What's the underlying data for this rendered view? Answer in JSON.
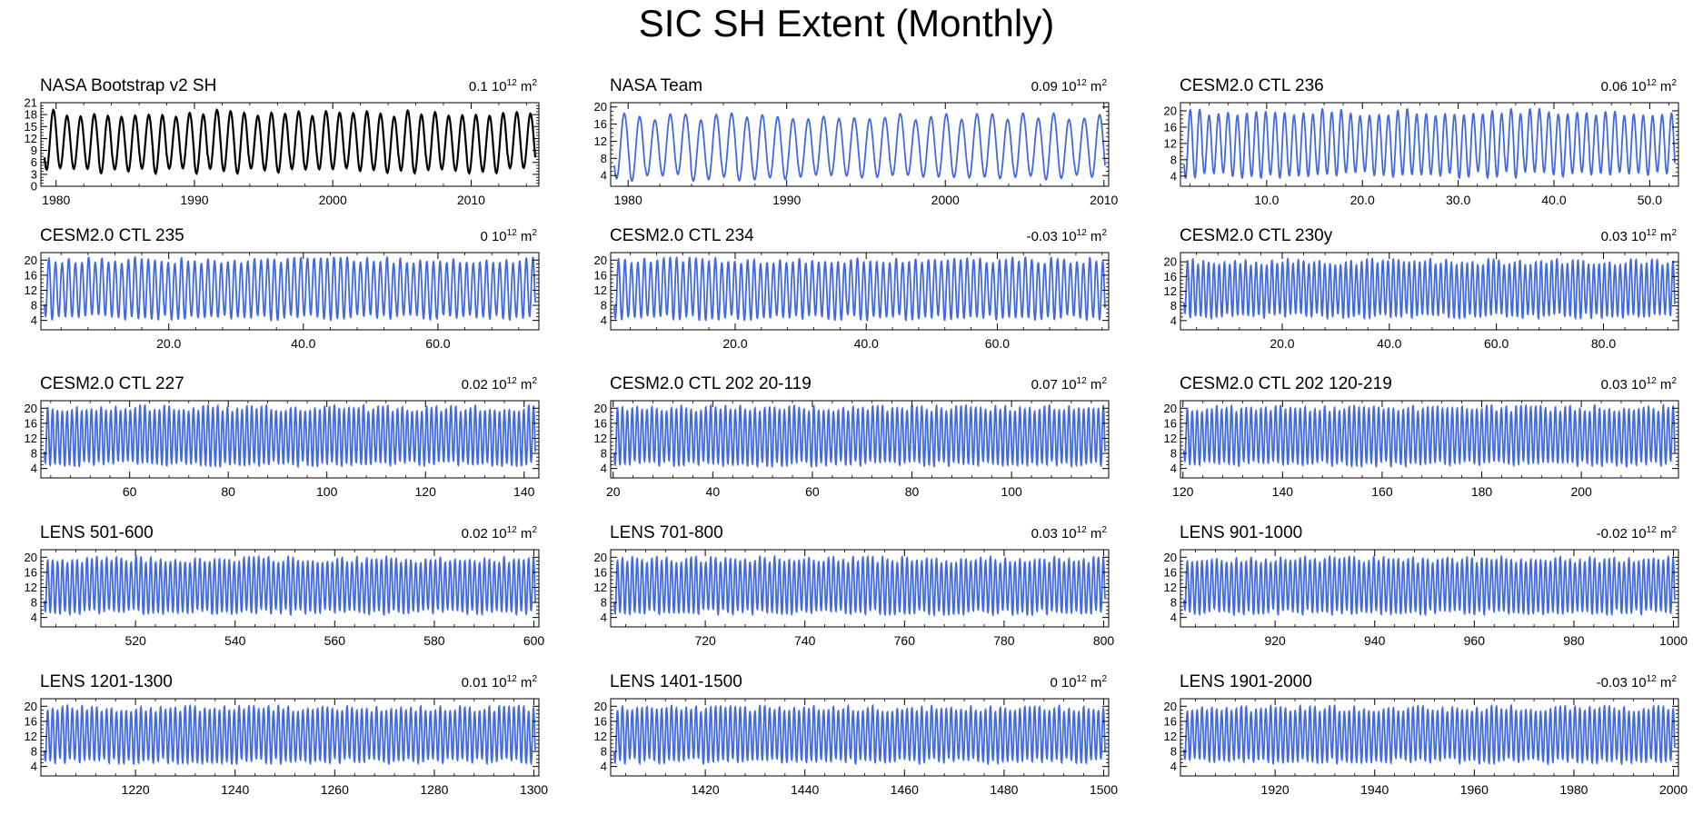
{
  "figure_title": "SIC SH Extent (Monthly)",
  "colors": {
    "observed": "#000000",
    "model": "#4169e1",
    "frame": "#000000"
  },
  "unit": {
    "base": "10",
    "exp": "12",
    "suffix": "m",
    "sup": "2"
  },
  "chart_data": [
    {
      "type": "line",
      "title": "NASA Bootstrap v2 SH",
      "trend": "0.1",
      "color": "#000000",
      "xlim": [
        1978.9,
        2014.9
      ],
      "xticks": [
        1980,
        1990,
        2000,
        2010
      ],
      "xtick_labels": [
        "1980",
        "1990",
        "2000",
        "2010"
      ],
      "ylim": [
        0,
        21
      ],
      "yticks": [
        0,
        3,
        6,
        9,
        12,
        15,
        18,
        21
      ],
      "ytick_labels": [
        "0",
        "3",
        "6",
        "9",
        "12",
        "15",
        "18",
        "21"
      ],
      "series": [
        {
          "name": "NASA Bootstrap v2 SH",
          "cycles": 36,
          "min": 3.5,
          "max": 19.2,
          "min_phase": 0.15
        }
      ]
    },
    {
      "type": "line",
      "title": "NASA Team",
      "trend": "0.09",
      "color": "#4169e1",
      "xlim": [
        1978.9,
        2010.3
      ],
      "xticks": [
        1980,
        1990,
        2000,
        2010
      ],
      "xtick_labels": [
        "1980",
        "1990",
        "2000",
        "2010"
      ],
      "ylim": [
        1.5,
        21
      ],
      "yticks": [
        4,
        8,
        12,
        16,
        20
      ],
      "ytick_labels": [
        "4",
        "8",
        "12",
        "16",
        "20"
      ],
      "series": [
        {
          "name": "NASA Team",
          "cycles": 32,
          "min": 3.2,
          "max": 18.6,
          "min_phase": 0.15
        }
      ]
    },
    {
      "type": "line",
      "title": "CESM2.0 CTL 236",
      "trend": "0.06",
      "color": "#4169e1",
      "xlim": [
        1,
        53
      ],
      "xticks": [
        10,
        20,
        30,
        40,
        50
      ],
      "xtick_labels": [
        "10.0",
        "20.0",
        "30.0",
        "40.0",
        "50.0"
      ],
      "ylim": [
        1.5,
        22
      ],
      "yticks": [
        4,
        8,
        12,
        16,
        20
      ],
      "ytick_labels": [
        "4",
        "8",
        "12",
        "16",
        "20"
      ],
      "series": [
        {
          "name": "CESM2.0 CTL 236",
          "cycles": 52,
          "min": 4.0,
          "max": 20.5,
          "min_phase": 0.15
        }
      ]
    },
    {
      "type": "line",
      "title": "CESM2.0 CTL 235",
      "trend": "0",
      "color": "#4169e1",
      "xlim": [
        1,
        75
      ],
      "xticks": [
        20,
        40,
        60
      ],
      "xtick_labels": [
        "20.0",
        "40.0",
        "60.0"
      ],
      "ylim": [
        1.5,
        22
      ],
      "yticks": [
        4,
        8,
        12,
        16,
        20
      ],
      "ytick_labels": [
        "4",
        "8",
        "12",
        "16",
        "20"
      ],
      "series": [
        {
          "name": "CESM2.0 CTL 235",
          "cycles": 74,
          "min": 4.5,
          "max": 20.8,
          "min_phase": 0.15
        }
      ]
    },
    {
      "type": "line",
      "title": "CESM2.0 CTL 234",
      "trend": "-0.03",
      "color": "#4169e1",
      "xlim": [
        1,
        77
      ],
      "xticks": [
        20,
        40,
        60
      ],
      "xtick_labels": [
        "20.0",
        "40.0",
        "60.0"
      ],
      "ylim": [
        1.5,
        22
      ],
      "yticks": [
        4,
        8,
        12,
        16,
        20
      ],
      "ytick_labels": [
        "4",
        "8",
        "12",
        "16",
        "20"
      ],
      "series": [
        {
          "name": "CESM2.0 CTL 234",
          "cycles": 76,
          "min": 4.5,
          "max": 20.8,
          "min_phase": 0.15
        }
      ]
    },
    {
      "type": "line",
      "title": "CESM2.0 CTL 230y",
      "trend": "0.03",
      "color": "#4169e1",
      "xlim": [
        1,
        94
      ],
      "xticks": [
        20,
        40,
        60,
        80
      ],
      "xtick_labels": [
        "20.0",
        "40.0",
        "60.0",
        "80.0"
      ],
      "ylim": [
        1.5,
        22.5
      ],
      "yticks": [
        4,
        8,
        12,
        16,
        20
      ],
      "ytick_labels": [
        "4",
        "8",
        "12",
        "16",
        "20"
      ],
      "series": [
        {
          "name": "CESM2.0 CTL 230y",
          "cycles": 93,
          "min": 5.0,
          "max": 20.8,
          "min_phase": 0.15
        }
      ]
    },
    {
      "type": "line",
      "title": "CESM2.0 CTL 227",
      "trend": "0.02",
      "color": "#4169e1",
      "xlim": [
        42,
        143
      ],
      "xticks": [
        60,
        80,
        100,
        120,
        140
      ],
      "xtick_labels": [
        "60",
        "80",
        "100",
        "120",
        "140"
      ],
      "ylim": [
        1.5,
        22
      ],
      "yticks": [
        4,
        8,
        12,
        16,
        20
      ],
      "ytick_labels": [
        "4",
        "8",
        "12",
        "16",
        "20"
      ],
      "series": [
        {
          "name": "CESM2.0 CTL 227",
          "cycles": 101,
          "min": 5.0,
          "max": 20.8,
          "min_phase": 0.15
        }
      ]
    },
    {
      "type": "line",
      "title": "CESM2.0 CTL 202 20-119",
      "trend": "0.07",
      "color": "#4169e1",
      "xlim": [
        19.5,
        119.5
      ],
      "xticks": [
        20,
        40,
        60,
        80,
        100
      ],
      "xtick_labels": [
        "20",
        "40",
        "60",
        "80",
        "100"
      ],
      "ylim": [
        1.5,
        22
      ],
      "yticks": [
        4,
        8,
        12,
        16,
        20
      ],
      "ytick_labels": [
        "4",
        "8",
        "12",
        "16",
        "20"
      ],
      "series": [
        {
          "name": "CESM2.0 CTL 202 20-119",
          "cycles": 100,
          "min": 5.0,
          "max": 20.8,
          "min_phase": 0.15
        }
      ]
    },
    {
      "type": "line",
      "title": "CESM2.0 CTL 202 120-219",
      "trend": "0.03",
      "color": "#4169e1",
      "xlim": [
        119.5,
        219.5
      ],
      "xticks": [
        120,
        140,
        160,
        180,
        200
      ],
      "xtick_labels": [
        "120",
        "140",
        "160",
        "180",
        "200"
      ],
      "ylim": [
        1.5,
        22
      ],
      "yticks": [
        4,
        8,
        12,
        16,
        20
      ],
      "ytick_labels": [
        "4",
        "8",
        "12",
        "16",
        "20"
      ],
      "series": [
        {
          "name": "CESM2.0 CTL 202 120-219",
          "cycles": 100,
          "min": 5.0,
          "max": 20.8,
          "min_phase": 0.15
        }
      ]
    },
    {
      "type": "line",
      "title": "LENS 501-600",
      "trend": "0.02",
      "color": "#4169e1",
      "xlim": [
        501,
        601
      ],
      "xticks": [
        520,
        540,
        560,
        580,
        600
      ],
      "xtick_labels": [
        "520",
        "540",
        "560",
        "580",
        "600"
      ],
      "ylim": [
        1.5,
        22
      ],
      "yticks": [
        4,
        8,
        12,
        16,
        20
      ],
      "ytick_labels": [
        "4",
        "8",
        "12",
        "16",
        "20"
      ],
      "series": [
        {
          "name": "LENS 501-600",
          "cycles": 100,
          "min": 5.2,
          "max": 20.2,
          "min_phase": 0.15
        }
      ]
    },
    {
      "type": "line",
      "title": "LENS 701-800",
      "trend": "0.03",
      "color": "#4169e1",
      "xlim": [
        701,
        801
      ],
      "xticks": [
        720,
        740,
        760,
        780,
        800
      ],
      "xtick_labels": [
        "720",
        "740",
        "760",
        "780",
        "800"
      ],
      "ylim": [
        1.5,
        22
      ],
      "yticks": [
        4,
        8,
        12,
        16,
        20
      ],
      "ytick_labels": [
        "4",
        "8",
        "12",
        "16",
        "20"
      ],
      "series": [
        {
          "name": "LENS 701-800",
          "cycles": 100,
          "min": 5.2,
          "max": 20.2,
          "min_phase": 0.15
        }
      ]
    },
    {
      "type": "line",
      "title": "LENS 901-1000",
      "trend": "-0.02",
      "color": "#4169e1",
      "xlim": [
        901,
        1001
      ],
      "xticks": [
        920,
        940,
        960,
        980,
        1000
      ],
      "xtick_labels": [
        "920",
        "940",
        "960",
        "980",
        "1000"
      ],
      "ylim": [
        1.5,
        22
      ],
      "yticks": [
        4,
        8,
        12,
        16,
        20
      ],
      "ytick_labels": [
        "4",
        "8",
        "12",
        "16",
        "20"
      ],
      "series": [
        {
          "name": "LENS 901-1000",
          "cycles": 100,
          "min": 5.2,
          "max": 20.2,
          "min_phase": 0.15
        }
      ]
    },
    {
      "type": "line",
      "title": "LENS 1201-1300",
      "trend": "0.01",
      "color": "#4169e1",
      "xlim": [
        1201,
        1301
      ],
      "xticks": [
        1220,
        1240,
        1260,
        1280,
        1300
      ],
      "xtick_labels": [
        "1220",
        "1240",
        "1260",
        "1280",
        "1300"
      ],
      "ylim": [
        1.5,
        22
      ],
      "yticks": [
        4,
        8,
        12,
        16,
        20
      ],
      "ytick_labels": [
        "4",
        "8",
        "12",
        "16",
        "20"
      ],
      "series": [
        {
          "name": "LENS 1201-1300",
          "cycles": 100,
          "min": 5.2,
          "max": 20.2,
          "min_phase": 0.15
        }
      ]
    },
    {
      "type": "line",
      "title": "LENS 1401-1500",
      "trend": "0",
      "color": "#4169e1",
      "xlim": [
        1401,
        1501
      ],
      "xticks": [
        1420,
        1440,
        1460,
        1480,
        1500
      ],
      "xtick_labels": [
        "1420",
        "1440",
        "1460",
        "1480",
        "1500"
      ],
      "ylim": [
        1.5,
        22
      ],
      "yticks": [
        4,
        8,
        12,
        16,
        20
      ],
      "ytick_labels": [
        "4",
        "8",
        "12",
        "16",
        "20"
      ],
      "series": [
        {
          "name": "LENS 1401-1500",
          "cycles": 100,
          "min": 5.2,
          "max": 20.2,
          "min_phase": 0.15
        }
      ]
    },
    {
      "type": "line",
      "title": "LENS 1901-2000",
      "trend": "-0.03",
      "color": "#4169e1",
      "xlim": [
        1901,
        2001
      ],
      "xticks": [
        1920,
        1940,
        1960,
        1980,
        2000
      ],
      "xtick_labels": [
        "1920",
        "1940",
        "1960",
        "1980",
        "2000"
      ],
      "ylim": [
        1.5,
        22
      ],
      "yticks": [
        4,
        8,
        12,
        16,
        20
      ],
      "ytick_labels": [
        "4",
        "8",
        "12",
        "16",
        "20"
      ],
      "series": [
        {
          "name": "LENS 1901-2000",
          "cycles": 100,
          "min": 5.2,
          "max": 20.2,
          "min_phase": 0.15
        }
      ]
    }
  ]
}
